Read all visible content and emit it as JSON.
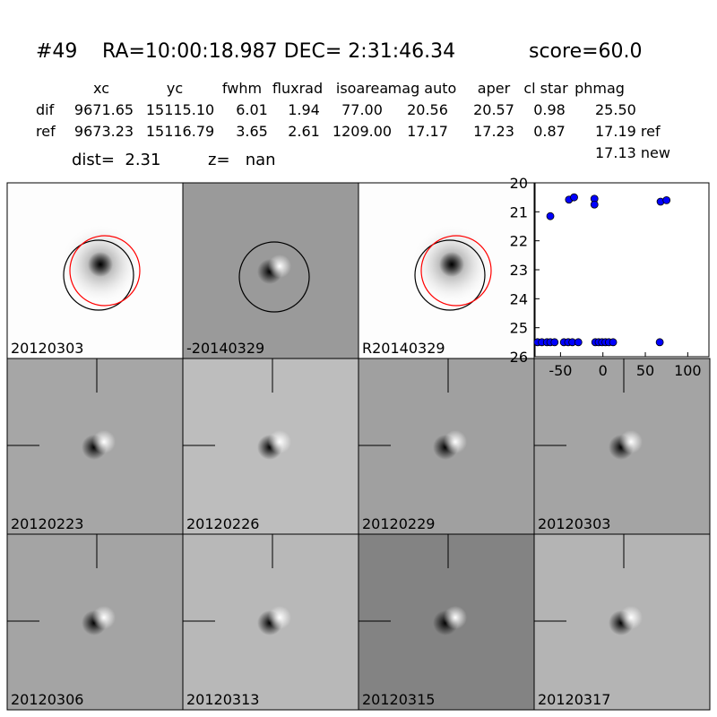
{
  "header": {
    "object": "#49",
    "coords": "RA=10:00:18.987 DEC= 2:31:46.34",
    "score": "score=60.0"
  },
  "table": {
    "columns": [
      "xc",
      "yc",
      "fwhm",
      "fluxrad",
      "isoarea",
      "mag auto",
      "aper",
      "cl star",
      "phmag"
    ],
    "rows": [
      [
        "dif",
        "9671.65",
        "15115.10",
        "6.01",
        "1.94",
        "77.00",
        "20.56",
        "20.57",
        "0.98",
        "25.50"
      ],
      [
        "ref",
        "9673.23",
        "15116.79",
        "3.65",
        "2.61",
        "1209.00",
        "17.17",
        "17.23",
        "0.87",
        "17.19 ref"
      ]
    ],
    "extra": "17.13 new"
  },
  "dist": "dist=  2.31",
  "z": "z=   nan",
  "panels": [
    {
      "label": "20120303"
    },
    {
      "label": "-20140329"
    },
    {
      "label": "R20140329"
    },
    {
      "label": "20120223"
    },
    {
      "label": "20120226"
    },
    {
      "label": "20120229"
    },
    {
      "label": "20120303",
      "color": "#ff0000"
    },
    {
      "label": "20120306"
    },
    {
      "label": "20120313"
    },
    {
      "label": "20120315"
    },
    {
      "label": "20120317"
    }
  ],
  "chart_data": {
    "type": "scatter",
    "color": "#0000ff",
    "x": [
      -62,
      -40,
      -34,
      -10,
      -10,
      68,
      75,
      -77,
      -72,
      -66,
      -62,
      -57,
      -46,
      -41,
      -36,
      -29,
      -9,
      -5,
      -1,
      3,
      7,
      12,
      67
    ],
    "values": [
      21.15,
      20.58,
      20.5,
      20.55,
      20.75,
      20.65,
      20.6,
      25.5,
      25.5,
      25.5,
      25.5,
      25.5,
      25.5,
      25.5,
      25.5,
      25.5,
      25.5,
      25.5,
      25.5,
      25.5,
      25.5,
      25.5,
      25.5
    ],
    "xlim": [
      -80,
      125
    ],
    "xticks": [
      -50,
      0,
      50,
      100
    ],
    "ylim": [
      20,
      26
    ],
    "yticks": [
      20,
      21,
      22,
      23,
      24,
      25,
      26
    ],
    "y_inverted": true
  }
}
